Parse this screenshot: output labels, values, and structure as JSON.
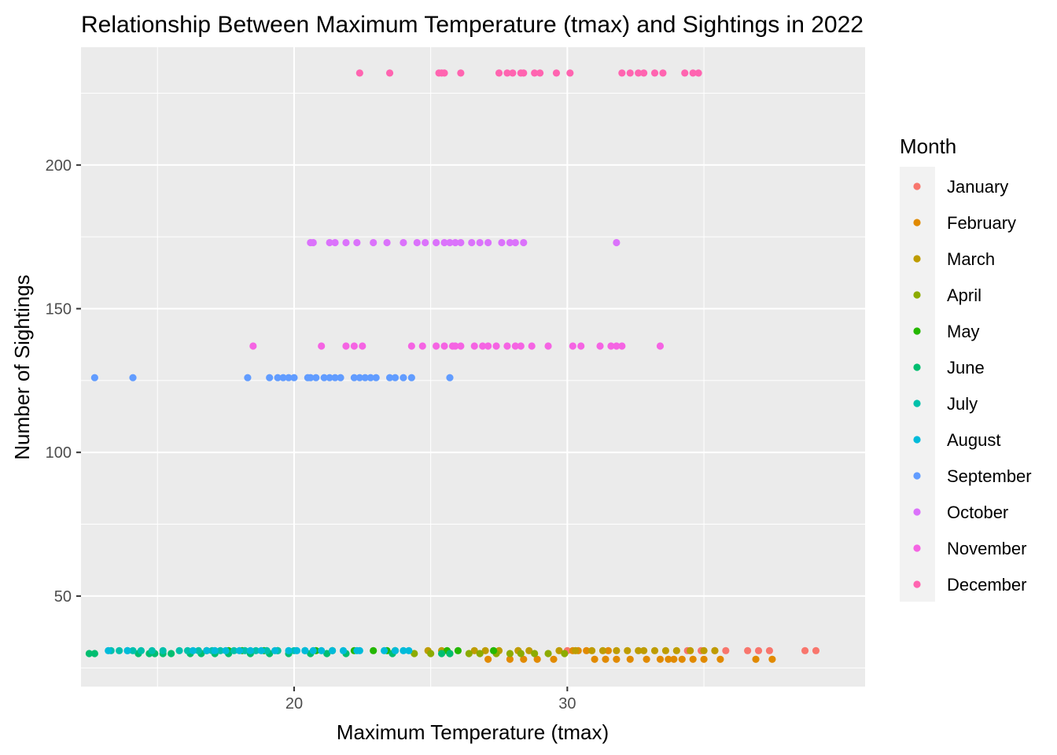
{
  "chart_data": {
    "type": "scatter",
    "title": "Relationship Between Maximum Temperature (tmax) and Sightings in 2022",
    "xlabel": "Maximum Temperature (tmax)",
    "ylabel": "Number of Sightings",
    "xlim": [
      12.2,
      40.9
    ],
    "ylim": [
      18.5,
      241
    ],
    "x_ticks": [
      20,
      30
    ],
    "y_ticks": [
      50,
      100,
      150,
      200
    ],
    "grid": true,
    "legend": {
      "title": "Month",
      "position": "right"
    },
    "series": [
      {
        "name": "January",
        "color": "#F8766D",
        "y": 31,
        "x": [
          30.0,
          34.4,
          34.9,
          35.4,
          35.8,
          36.6,
          37.0,
          37.4,
          38.7,
          39.1
        ]
      },
      {
        "name": "February",
        "color": "#E18A00",
        "y": 28,
        "x": [
          27.1,
          27.9,
          28.4,
          28.9,
          29.5,
          31.0,
          31.4,
          31.8,
          32.3,
          32.9,
          33.4,
          33.7,
          33.9,
          34.2,
          34.6,
          35.0,
          35.6,
          36.9,
          37.5
        ],
        "x_hi": [
          28.2,
          30.2,
          30.4,
          30.7,
          31.5
        ]
      },
      {
        "name": "March",
        "color": "#BE9C00",
        "y": 31,
        "x": [
          24.9,
          25.4,
          26.6,
          27.0,
          27.5,
          28.2,
          28.6,
          29.7,
          30.3,
          30.9,
          31.3,
          31.8,
          32.2,
          32.6,
          32.8,
          33.2,
          33.6,
          34.0,
          34.5,
          35.0,
          35.4
        ]
      },
      {
        "name": "April",
        "color": "#8CAB00",
        "y": 30,
        "x": [
          24.4,
          25.0,
          25.7,
          26.4,
          26.8,
          27.4,
          27.9,
          28.3,
          28.8,
          29.3,
          29.9
        ]
      },
      {
        "name": "May",
        "color": "#24B700",
        "y": 31,
        "x": [
          16.8,
          17.6,
          18.1,
          18.9,
          19.4,
          20.8,
          21.4,
          22.2,
          22.9,
          23.4,
          23.7,
          25.6,
          26.0,
          27.3
        ]
      },
      {
        "name": "June",
        "color": "#00BE70",
        "y": 30,
        "x": [
          12.5,
          12.7,
          14.3,
          14.7,
          14.9,
          15.2,
          15.5,
          16.2,
          16.6,
          17.1,
          17.6,
          18.4,
          19.1,
          19.8,
          20.6,
          21.2,
          21.9,
          23.6,
          25.4,
          25.7
        ]
      },
      {
        "name": "July",
        "color": "#00C1AB",
        "y": 31,
        "x": [
          13.3,
          13.6,
          13.9,
          14.1,
          14.4,
          14.8,
          15.2,
          15.8,
          16.1,
          16.5,
          17.0,
          17.3,
          17.8,
          18.2,
          18.6,
          19.0,
          19.4,
          20.0,
          20.4
        ]
      },
      {
        "name": "August",
        "color": "#00BBDA",
        "y": 31,
        "x": [
          13.2,
          13.9,
          16.3,
          16.8,
          17.1,
          17.5,
          18.0,
          18.4,
          18.8,
          19.3,
          19.8,
          20.1,
          20.4,
          20.7,
          21.0,
          21.4,
          21.8,
          22.3,
          22.4,
          23.3,
          23.7,
          24.0,
          24.2
        ]
      },
      {
        "name": "September",
        "color": "#619CFF",
        "y": 126,
        "x": [
          12.7,
          14.1,
          18.3,
          19.1,
          19.4,
          19.6,
          19.8,
          20.0,
          20.5,
          20.6,
          20.8,
          21.1,
          21.3,
          21.5,
          21.7,
          22.2,
          22.4,
          22.6,
          22.8,
          23.0,
          23.5,
          23.7,
          24.0,
          24.3,
          25.7
        ]
      },
      {
        "name": "October",
        "color": "#DB72FB",
        "y": 173,
        "x": [
          20.6,
          20.7,
          21.3,
          21.5,
          21.9,
          22.3,
          22.9,
          23.4,
          24.0,
          24.5,
          24.8,
          25.2,
          25.5,
          25.7,
          25.9,
          26.1,
          26.5,
          26.8,
          27.1,
          27.6,
          27.9,
          28.1,
          28.4,
          31.8
        ]
      },
      {
        "name": "November",
        "color": "#F564E3",
        "y": 137,
        "x": [
          18.5,
          21.0,
          21.9,
          22.2,
          22.5,
          24.3,
          24.7,
          25.2,
          25.5,
          25.8,
          25.9,
          26.1,
          26.6,
          26.9,
          27.1,
          27.4,
          27.8,
          28.1,
          28.3,
          28.7,
          29.3,
          30.2,
          30.5,
          31.2,
          31.6,
          31.8,
          32.0,
          33.4
        ]
      },
      {
        "name": "December",
        "color": "#FF64B0",
        "y": 232,
        "x": [
          22.4,
          23.5,
          25.3,
          25.4,
          25.5,
          26.1,
          27.5,
          27.8,
          28.0,
          28.3,
          28.4,
          28.8,
          29.0,
          29.6,
          30.1,
          32.0,
          32.3,
          32.6,
          32.8,
          33.2,
          33.5,
          34.3,
          34.6,
          34.8
        ]
      }
    ]
  }
}
